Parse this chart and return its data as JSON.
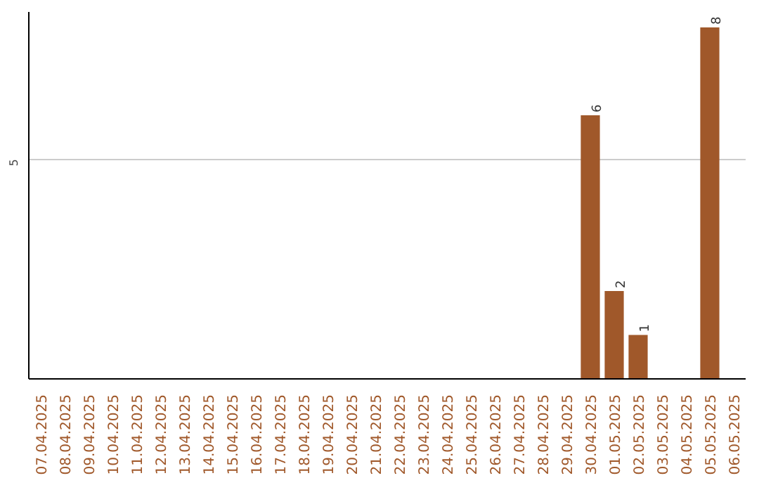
{
  "chart_data": {
    "type": "bar",
    "categories": [
      "07.04.2025",
      "08.04.2025",
      "09.04.2025",
      "10.04.2025",
      "11.04.2025",
      "12.04.2025",
      "13.04.2025",
      "14.04.2025",
      "15.04.2025",
      "16.04.2025",
      "17.04.2025",
      "18.04.2025",
      "19.04.2025",
      "20.04.2025",
      "21.04.2025",
      "22.04.2025",
      "23.04.2025",
      "24.04.2025",
      "25.04.2025",
      "26.04.2025",
      "27.04.2025",
      "28.04.2025",
      "29.04.2025",
      "30.04.2025",
      "01.05.2025",
      "02.05.2025",
      "03.05.2025",
      "04.05.2025",
      "05.05.2025",
      "06.05.2025"
    ],
    "values": [
      null,
      null,
      null,
      null,
      null,
      null,
      null,
      null,
      null,
      null,
      null,
      null,
      null,
      null,
      null,
      null,
      null,
      null,
      null,
      null,
      null,
      null,
      null,
      6,
      2,
      1,
      null,
      null,
      8,
      null
    ],
    "color": "#a0582a",
    "ylim": [
      0,
      8.35
    ],
    "yticks": [
      5
    ],
    "grid": "y",
    "data_labels": true
  }
}
